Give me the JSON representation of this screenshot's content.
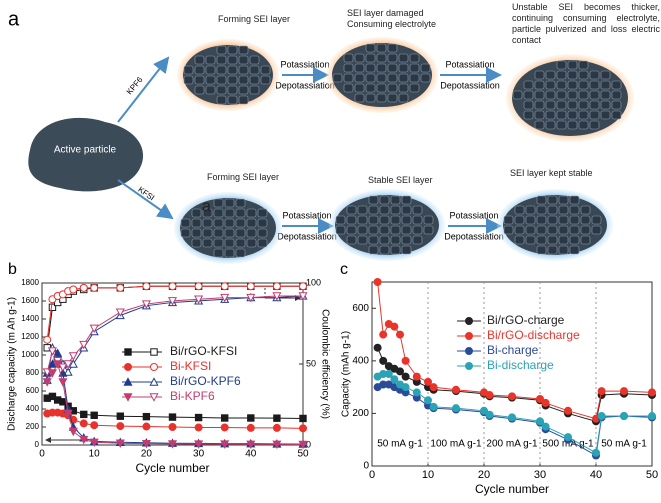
{
  "diagram": {
    "panel_labels": [
      "a",
      "b",
      "c"
    ],
    "active_particle": "Active particle",
    "routes": [
      "KPF6",
      "KFSI"
    ],
    "potassiation": "Potassiation",
    "depotassiation": "Depotassiation",
    "top_steps": [
      "Forming SEI layer",
      "SEI layer damaged Consuming electrolyte",
      "Unstable SEI becomes thicker, continuing consuming electrolyte, particle pulverized and loss electric contact"
    ],
    "bottom_steps": [
      "Forming SEI layer",
      "Stable SEI layer",
      "SEI layer kept stable"
    ],
    "overlay_label": "a"
  },
  "chart_data": [
    {
      "type": "line",
      "xlabel": "Cycle number",
      "ylabel": "Discharge capacity (m Ah g-1)",
      "y2label": "Coulombic efficiency (%)",
      "x": [
        1,
        2,
        3,
        4,
        5,
        6,
        8,
        10,
        15,
        20,
        25,
        30,
        35,
        40,
        45,
        50
      ],
      "xlim": [
        0,
        50
      ],
      "xticks": [
        0,
        10,
        20,
        30,
        40,
        50
      ],
      "ylim": [
        0,
        1800
      ],
      "yticks": [
        0,
        200,
        400,
        600,
        800,
        1000,
        1200,
        1400,
        1600,
        1800
      ],
      "y2lim": [
        0,
        100
      ],
      "y2ticks": [
        0,
        50,
        100
      ],
      "series": [
        {
          "name": "Bi/rGO-KFSI",
          "color": "#1a1a1a",
          "marker": "square",
          "values": [
            520,
            540,
            500,
            480,
            430,
            380,
            340,
            330,
            320,
            315,
            310,
            305,
            300,
            300,
            298,
            295
          ],
          "y2_values": [
            60,
            85,
            88,
            90,
            93,
            95,
            96,
            97,
            97,
            98,
            98,
            98,
            98,
            98,
            98,
            98
          ]
        },
        {
          "name": "Bi-KFSI",
          "color": "#e8332c",
          "marker": "circle",
          "values": [
            350,
            360,
            360,
            350,
            330,
            280,
            240,
            220,
            210,
            205,
            200,
            195,
            195,
            190,
            190,
            185
          ],
          "y2_values": [
            65,
            90,
            92,
            93,
            95,
            96,
            97,
            97,
            97,
            98,
            98,
            98,
            98,
            98,
            98,
            98
          ]
        },
        {
          "name": "Bi/rGO-KPF6",
          "color": "#1f3c8f",
          "marker": "triangle",
          "values": [
            800,
            900,
            1020,
            800,
            400,
            200,
            80,
            40,
            30,
            25,
            20,
            18,
            15,
            15,
            12,
            10
          ],
          "y2_values": [
            40,
            60,
            55,
            50,
            45,
            50,
            60,
            70,
            80,
            86,
            88,
            89,
            90,
            91,
            91,
            92
          ]
        },
        {
          "name": "Bi-KPF6",
          "color": "#c43c6e",
          "marker": "triangle-down",
          "values": [
            700,
            800,
            900,
            700,
            350,
            150,
            60,
            30,
            20,
            15,
            12,
            10,
            10,
            8,
            8,
            6
          ],
          "y2_values": [
            45,
            58,
            52,
            48,
            50,
            55,
            62,
            72,
            82,
            87,
            89,
            90,
            91,
            91,
            92,
            92
          ]
        }
      ]
    },
    {
      "type": "line",
      "xlabel": "Cycle number",
      "ylabel": "Capacity (mAh g-1)",
      "x": [
        1,
        2,
        3,
        4,
        5,
        6,
        8,
        10,
        11,
        15,
        20,
        21,
        25,
        30,
        31,
        35,
        40,
        41,
        45,
        50
      ],
      "xlim": [
        0,
        50
      ],
      "xticks": [
        0,
        10,
        20,
        30,
        40,
        50
      ],
      "ylim": [
        0,
        700
      ],
      "yticks": [
        0,
        200,
        400,
        600
      ],
      "dividers": [
        10,
        20,
        30,
        40
      ],
      "annotations": [
        "50 mA g-1",
        "100 mA g-1",
        "200 mA g-1",
        "500 mA g-1",
        "50 mA g-1"
      ],
      "series": [
        {
          "name": "Bi/rGO-charge",
          "color": "#222222",
          "marker": "circle",
          "values": [
            450,
            400,
            380,
            370,
            360,
            340,
            320,
            300,
            290,
            285,
            275,
            265,
            260,
            250,
            230,
            200,
            170,
            270,
            275,
            270
          ]
        },
        {
          "name": "Bi/rGO-discharge",
          "color": "#e8352b",
          "marker": "circle",
          "values": [
            700,
            500,
            540,
            530,
            500,
            400,
            340,
            320,
            300,
            290,
            280,
            270,
            265,
            255,
            240,
            210,
            180,
            285,
            285,
            280
          ]
        },
        {
          "name": "Bi-charge",
          "color": "#2a4a9a",
          "marker": "circle",
          "values": [
            300,
            310,
            310,
            300,
            290,
            280,
            260,
            230,
            220,
            215,
            205,
            190,
            180,
            165,
            140,
            100,
            40,
            185,
            190,
            185
          ]
        },
        {
          "name": "Bi-discharge",
          "color": "#2aa3b5",
          "marker": "circle",
          "values": [
            340,
            350,
            350,
            330,
            310,
            300,
            280,
            250,
            225,
            220,
            210,
            195,
            185,
            170,
            150,
            110,
            50,
            190,
            190,
            190
          ]
        }
      ]
    }
  ]
}
